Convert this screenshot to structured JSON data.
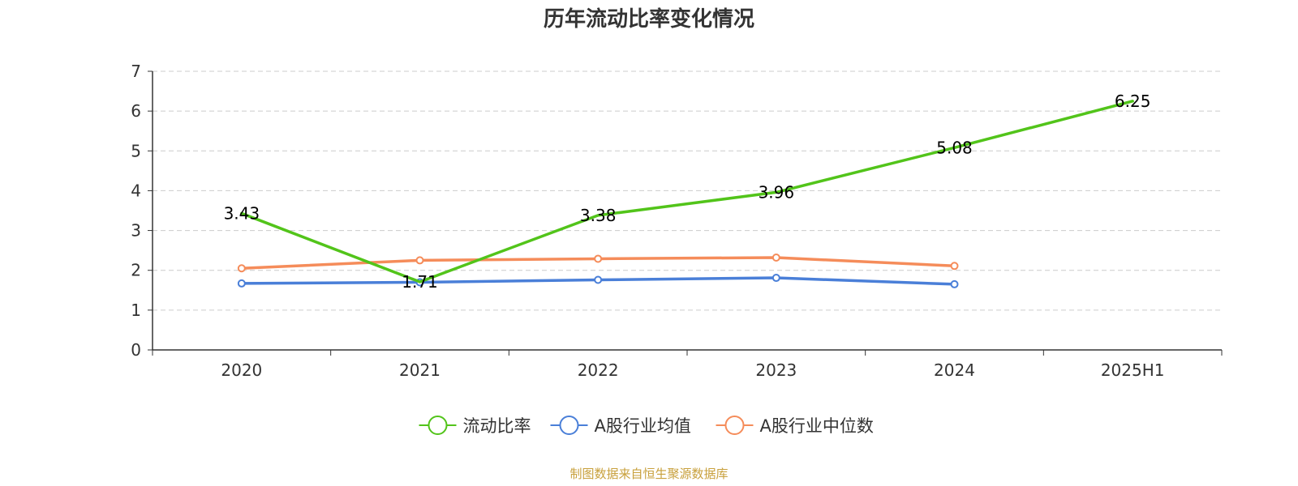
{
  "chart_data": {
    "type": "line",
    "title": "历年流动比率变化情况",
    "categories": [
      "2020",
      "2021",
      "2022",
      "2023",
      "2024",
      "2025H1"
    ],
    "ylim": [
      0,
      7
    ],
    "yticks": [
      0,
      1,
      2,
      3,
      4,
      5,
      6,
      7
    ],
    "grid": true,
    "legend_position": "bottom",
    "series": [
      {
        "name": "流动比率",
        "color": "#52c41a",
        "values": [
          3.43,
          1.71,
          3.38,
          3.96,
          5.08,
          6.25
        ],
        "labels": [
          "3.43",
          "1.71",
          "3.38",
          "3.96",
          "5.08",
          "6.25"
        ],
        "show_markers": false
      },
      {
        "name": "A股行业均值",
        "color": "#4a7fd8",
        "values": [
          1.67,
          1.7,
          1.76,
          1.81,
          1.65,
          null
        ],
        "show_markers": true
      },
      {
        "name": "A股行业中位数",
        "color": "#f58c5a",
        "values": [
          2.05,
          2.25,
          2.29,
          2.32,
          2.11,
          null
        ],
        "show_markers": true
      }
    ],
    "source": "制图数据来自恒生聚源数据库"
  }
}
